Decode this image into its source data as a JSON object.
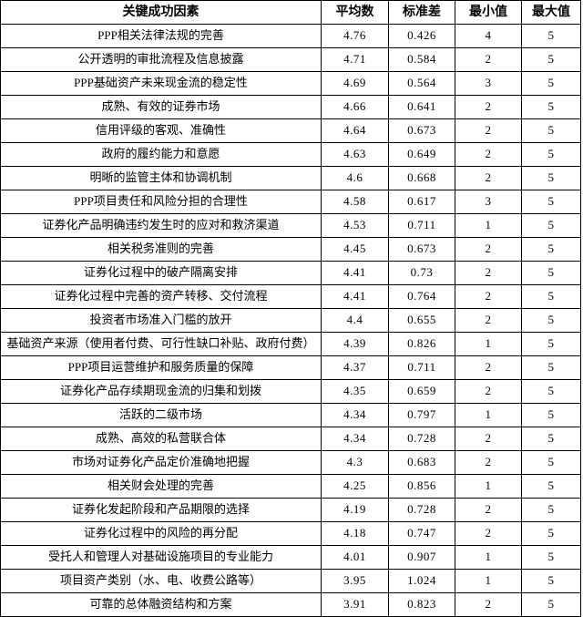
{
  "table": {
    "headers": [
      "关键成功因素",
      "平均数",
      "标准差",
      "最小值",
      "最大值"
    ],
    "rows": [
      [
        "PPP相关法律法规的完善",
        "4.76",
        "0.426",
        "4",
        "5"
      ],
      [
        "公开透明的审批流程及信息披露",
        "4.71",
        "0.584",
        "2",
        "5"
      ],
      [
        "PPP基础资产未来现金流的稳定性",
        "4.69",
        "0.564",
        "3",
        "5"
      ],
      [
        "成熟、有效的证券市场",
        "4.66",
        "0.641",
        "2",
        "5"
      ],
      [
        "信用评级的客观、准确性",
        "4.64",
        "0.673",
        "2",
        "5"
      ],
      [
        "政府的履约能力和意愿",
        "4.63",
        "0.649",
        "2",
        "5"
      ],
      [
        "明晰的监管主体和协调机制",
        "4.6",
        "0.668",
        "2",
        "5"
      ],
      [
        "PPP项目责任和风险分担的合理性",
        "4.58",
        "0.617",
        "3",
        "5"
      ],
      [
        "证券化产品明确违约发生时的应对和救济渠道",
        "4.53",
        "0.711",
        "1",
        "5"
      ],
      [
        "相关税务准则的完善",
        "4.45",
        "0.673",
        "2",
        "5"
      ],
      [
        "证券化过程中的破产隔离安排",
        "4.41",
        "0.73",
        "2",
        "5"
      ],
      [
        "证券化过程中完善的资产转移、交付流程",
        "4.41",
        "0.764",
        "2",
        "5"
      ],
      [
        "投资者市场准入门槛的放开",
        "4.4",
        "0.655",
        "2",
        "5"
      ],
      [
        "基础资产来源（使用者付费、可行性缺口补贴、政府付费）",
        "4.39",
        "0.826",
        "1",
        "5"
      ],
      [
        "PPP项目运营维护和服务质量的保障",
        "4.37",
        "0.711",
        "2",
        "5"
      ],
      [
        "证券化产品存续期现金流的归集和划拨",
        "4.35",
        "0.659",
        "2",
        "5"
      ],
      [
        "活跃的二级市场",
        "4.34",
        "0.797",
        "1",
        "5"
      ],
      [
        "成熟、高效的私营联合体",
        "4.34",
        "0.728",
        "2",
        "5"
      ],
      [
        "市场对证券化产品定价准确地把握",
        "4.3",
        "0.683",
        "2",
        "5"
      ],
      [
        "相关财会处理的完善",
        "4.25",
        "0.856",
        "1",
        "5"
      ],
      [
        "证券化发起阶段和产品期限的选择",
        "4.19",
        "0.728",
        "2",
        "5"
      ],
      [
        "证券化过程中的风险的再分配",
        "4.18",
        "0.747",
        "2",
        "5"
      ],
      [
        "受托人和管理人对基础设施项目的专业能力",
        "4.01",
        "0.907",
        "1",
        "5"
      ],
      [
        "项目资产类别（水、电、收费公路等）",
        "3.95",
        "1.024",
        "1",
        "5"
      ],
      [
        "可靠的总体融资结构和方案",
        "3.91",
        "0.823",
        "2",
        "5"
      ]
    ]
  }
}
